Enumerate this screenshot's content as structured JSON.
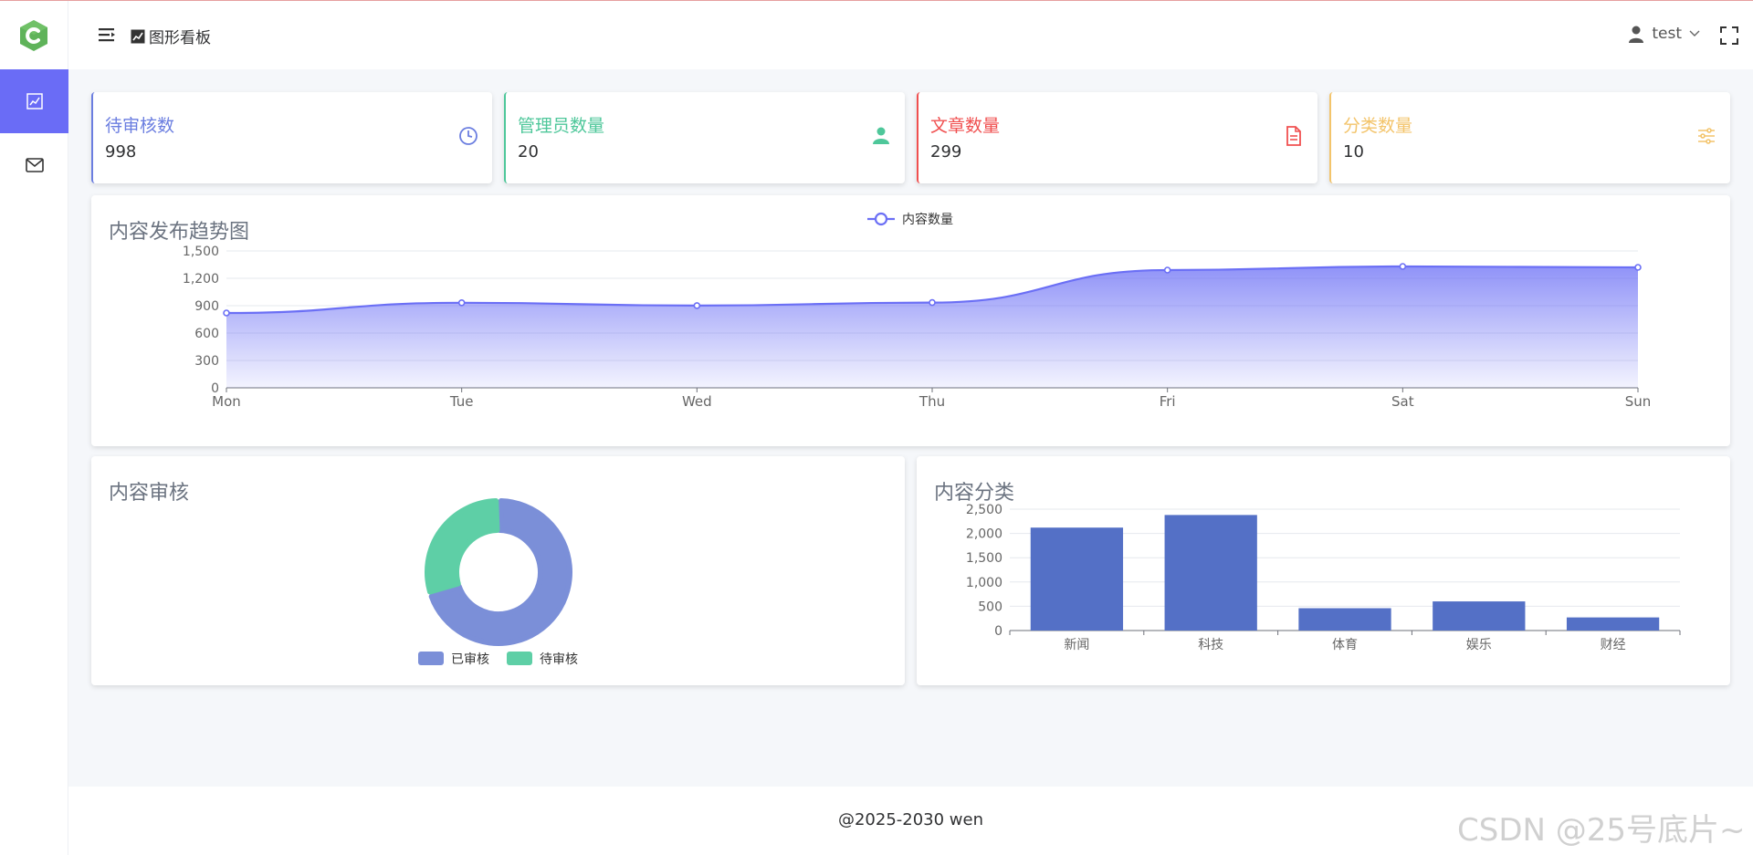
{
  "header": {
    "breadcrumb": "图形看板",
    "username": "test"
  },
  "sidebar": {
    "items": [
      {
        "icon": "trend-chart-icon",
        "active": true
      },
      {
        "icon": "mail-icon",
        "active": false
      }
    ]
  },
  "stats": [
    {
      "title": "待审核数",
      "value": "998",
      "color": "#6b7ee0",
      "icon": "clock-icon"
    },
    {
      "title": "管理员数量",
      "value": "20",
      "color": "#4ec79a",
      "icon": "user-icon"
    },
    {
      "title": "文章数量",
      "value": "299",
      "color": "#f05050",
      "icon": "document-icon"
    },
    {
      "title": "分类数量",
      "value": "10",
      "color": "#f3c46b",
      "icon": "sliders-icon"
    }
  ],
  "trend_panel": {
    "title": "内容发布趋势图"
  },
  "review_panel": {
    "title": "内容审核"
  },
  "category_panel": {
    "title": "内容分类"
  },
  "chart_data": [
    {
      "type": "area",
      "title": "内容发布趋势图",
      "categories": [
        "Mon",
        "Tue",
        "Wed",
        "Thu",
        "Fri",
        "Sat",
        "Sun"
      ],
      "series": [
        {
          "name": "内容数量",
          "values": [
            820,
            932,
            901,
            934,
            1290,
            1330,
            1320
          ]
        }
      ],
      "ylim": [
        0,
        1500
      ],
      "yticks": [
        "0",
        "300",
        "600",
        "900",
        "1,200",
        "1,500"
      ],
      "legend": "top-center",
      "grid": true,
      "color": "#6b6ff5"
    },
    {
      "type": "pie",
      "title": "内容审核",
      "donut": true,
      "slices": [
        {
          "name": "已审核",
          "value": 70,
          "color": "#7b8fd8"
        },
        {
          "name": "待审核",
          "value": 30,
          "color": "#5ecfa6"
        }
      ],
      "legend": "bottom"
    },
    {
      "type": "bar",
      "title": "内容分类",
      "categories": [
        "新闻",
        "科技",
        "体育",
        "娱乐",
        "财经"
      ],
      "values": [
        2120,
        2380,
        460,
        600,
        270
      ],
      "ylim": [
        0,
        2500
      ],
      "yticks": [
        "0",
        "500",
        "1,000",
        "1,500",
        "2,000",
        "2,500"
      ],
      "grid": true,
      "color": "#5470c6"
    }
  ],
  "footer": {
    "text": "@2025-2030 wen"
  },
  "watermark": "CSDN @25号底片~"
}
